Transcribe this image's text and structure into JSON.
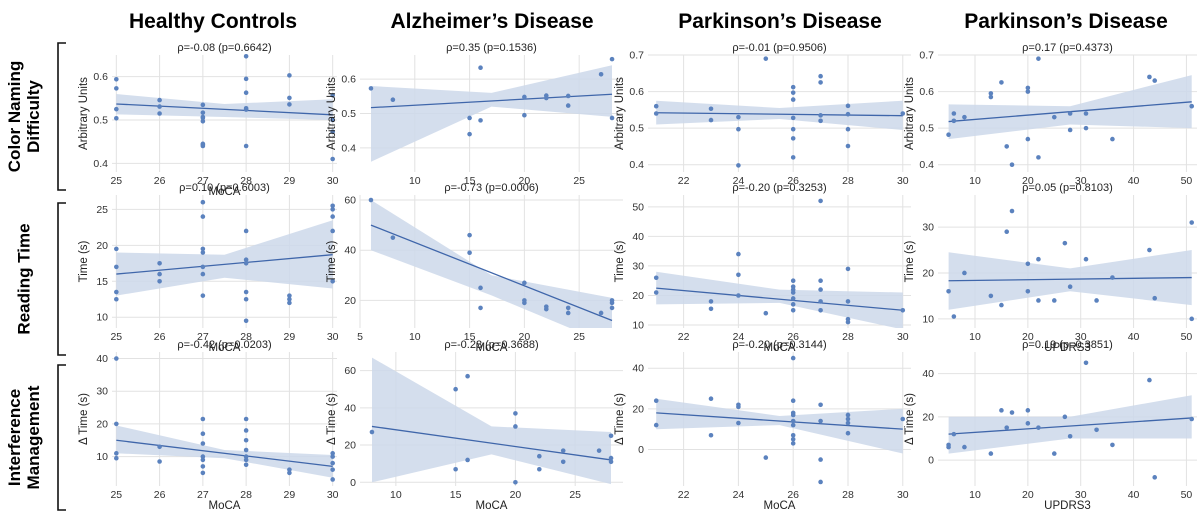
{
  "column_titles": [
    "Healthy Controls",
    "Alzheimer’s Disease",
    "Parkinson’s Disease",
    "Parkinson’s Disease"
  ],
  "row_titles": [
    [
      "Color Naming",
      "Difficulty"
    ],
    [
      "Reading Time"
    ],
    [
      "Interference",
      "Management"
    ]
  ],
  "colors": {
    "point": "#5b82be",
    "line": "#3f66aa",
    "band": "#ccd8ea",
    "grid": "#e2e2e2"
  },
  "chart_data": [
    {
      "type": "scatter",
      "title": "ρ=-0.08 (p=0.6642)",
      "xlabel": "MoCA",
      "ylabel": "Arbitrary Units",
      "xlim": [
        24.9,
        30.1
      ],
      "ylim": [
        0.38,
        0.65
      ],
      "xticks": [
        25,
        26,
        27,
        28,
        29,
        30
      ],
      "yticks": [
        0.4,
        0.5,
        0.6
      ],
      "x": [
        25,
        25,
        25,
        25,
        26,
        26,
        26,
        27,
        27,
        27,
        27,
        27,
        27,
        27,
        27,
        28,
        28,
        28,
        28,
        28,
        28,
        29,
        29,
        29,
        30,
        30,
        30,
        30
      ],
      "y": [
        0.594,
        0.573,
        0.525,
        0.504,
        0.546,
        0.531,
        0.515,
        0.535,
        0.517,
        0.505,
        0.497,
        0.507,
        0.445,
        0.443,
        0.44,
        0.647,
        0.595,
        0.563,
        0.527,
        0.524,
        0.44,
        0.603,
        0.551,
        0.536,
        0.557,
        0.5,
        0.473,
        0.41
      ],
      "fit": [
        [
          25,
          0.537
        ],
        [
          30,
          0.512
        ]
      ],
      "band_lo": [
        0.513,
        0.507,
        0.5
      ],
      "band_hi": [
        0.56,
        0.537,
        0.548
      ]
    },
    {
      "type": "scatter",
      "title": "ρ=0.35 (p=0.1536)",
      "xlabel": "",
      "ylabel": "Arbitrary Units",
      "xlim": [
        5,
        29
      ],
      "ylim": [
        0.33,
        0.67
      ],
      "xticks": [
        10,
        15,
        20,
        25
      ],
      "yticks": [
        0.4,
        0.5,
        0.6
      ],
      "x": [
        6,
        8,
        15,
        15,
        16,
        16,
        20,
        20,
        22,
        22,
        24,
        24,
        27,
        28,
        28
      ],
      "y": [
        0.573,
        0.54,
        0.487,
        0.44,
        0.633,
        0.48,
        0.548,
        0.495,
        0.552,
        0.545,
        0.551,
        0.523,
        0.614,
        0.658,
        0.487
      ],
      "fit": [
        [
          6,
          0.517
        ],
        [
          28,
          0.556
        ]
      ],
      "band_lo": [
        0.36,
        0.52,
        0.49
      ],
      "band_hi": [
        0.58,
        0.56,
        0.64
      ]
    },
    {
      "type": "scatter",
      "title": "ρ=-0.01 (p=0.9506)",
      "xlabel": "",
      "ylabel": "Arbitrary Units",
      "xlim": [
        20.7,
        30.3
      ],
      "ylim": [
        0.38,
        0.7
      ],
      "xticks": [
        22,
        24,
        26,
        28,
        30
      ],
      "yticks": [
        0.4,
        0.5,
        0.6,
        0.7
      ],
      "x": [
        21,
        21,
        23,
        23,
        24,
        24,
        24,
        25,
        26,
        26,
        26,
        26,
        26,
        26,
        26,
        27,
        27,
        27,
        27,
        28,
        28,
        28,
        28,
        30
      ],
      "y": [
        0.56,
        0.54,
        0.553,
        0.522,
        0.53,
        0.497,
        0.398,
        0.69,
        0.612,
        0.597,
        0.578,
        0.528,
        0.497,
        0.472,
        0.42,
        0.642,
        0.625,
        0.535,
        0.52,
        0.561,
        0.538,
        0.497,
        0.451,
        0.54
      ],
      "fit": [
        [
          21,
          0.542
        ],
        [
          30,
          0.534
        ]
      ],
      "band_lo": [
        0.51,
        0.525,
        0.495
      ],
      "band_hi": [
        0.575,
        0.555,
        0.575
      ]
    },
    {
      "type": "scatter",
      "title": "ρ=0.17 (p=0.4373)",
      "xlabel": "",
      "ylabel": "Arbitrary Units",
      "xlim": [
        3,
        52
      ],
      "ylim": [
        0.38,
        0.7
      ],
      "xticks": [
        10,
        20,
        30,
        40,
        50
      ],
      "yticks": [
        0.4,
        0.5,
        0.6,
        0.7
      ],
      "x": [
        5,
        6,
        6,
        8,
        13,
        13,
        15,
        16,
        17,
        20,
        20,
        20,
        22,
        22,
        25,
        28,
        28,
        31,
        31,
        36,
        43,
        44,
        51
      ],
      "y": [
        0.482,
        0.54,
        0.52,
        0.53,
        0.595,
        0.585,
        0.625,
        0.45,
        0.4,
        0.61,
        0.6,
        0.47,
        0.69,
        0.42,
        0.53,
        0.495,
        0.54,
        0.54,
        0.5,
        0.47,
        0.64,
        0.63,
        0.56
      ],
      "fit": [
        [
          5,
          0.518
        ],
        [
          51,
          0.572
        ]
      ],
      "band_lo": [
        0.47,
        0.51,
        0.5
      ],
      "band_hi": [
        0.565,
        0.56,
        0.645
      ]
    },
    {
      "type": "scatter",
      "title": "ρ=0.10 (p=0.6003)",
      "xlabel": "MoCA",
      "ylabel": "Time (s)",
      "xlim": [
        24.9,
        30.1
      ],
      "ylim": [
        8.5,
        27
      ],
      "xticks": [
        25,
        26,
        27,
        28,
        29,
        30
      ],
      "yticks": [
        10,
        15,
        20,
        25
      ],
      "x": [
        25,
        25,
        25,
        25,
        26,
        26,
        26,
        27,
        27,
        27,
        27,
        27,
        27,
        27,
        28,
        28,
        28,
        28,
        28,
        28,
        29,
        29,
        29,
        30,
        30,
        30,
        30,
        30
      ],
      "y": [
        19.5,
        17,
        13.5,
        12.5,
        17.5,
        16,
        15,
        26,
        24,
        19.5,
        19,
        17,
        16,
        13,
        22,
        18,
        17.5,
        13.5,
        12.5,
        9.5,
        13,
        12.5,
        12,
        25.5,
        25,
        24,
        22,
        15
      ],
      "fit": [
        [
          25,
          16
        ],
        [
          30,
          18.7
        ]
      ],
      "band_lo": [
        13,
        15.5,
        14
      ],
      "band_hi": [
        19,
        18.7,
        23.5
      ]
    },
    {
      "type": "scatter",
      "title": "ρ=-0.73 (p=0.0006)",
      "xlabel": "MoCA",
      "ylabel": "Time (s)",
      "xlim": [
        5,
        29
      ],
      "ylim": [
        9,
        62
      ],
      "xticks": [
        5,
        10,
        15,
        20,
        25
      ],
      "yticks": [
        20,
        40,
        60
      ],
      "x": [
        6,
        8,
        15,
        15,
        16,
        16,
        20,
        20,
        20,
        22,
        22,
        24,
        24,
        27,
        28,
        28,
        28
      ],
      "y": [
        60,
        45,
        46,
        39,
        25,
        17,
        27,
        20,
        19,
        17.5,
        16.5,
        17,
        15,
        15,
        20,
        19,
        17
      ],
      "fit": [
        [
          6,
          50
        ],
        [
          28,
          12
        ]
      ],
      "band_lo": [
        40,
        22,
        2
      ],
      "band_hi": [
        60,
        30,
        21
      ]
    },
    {
      "type": "scatter",
      "title": "ρ=-0.20 (p=0.3253)",
      "xlabel": "MoCA",
      "ylabel": "Time (s)",
      "xlim": [
        20.7,
        30.3
      ],
      "ylim": [
        9,
        54
      ],
      "xticks": [
        22,
        24,
        26,
        28,
        30
      ],
      "yticks": [
        10,
        20,
        30,
        40,
        50
      ],
      "x": [
        21,
        21,
        23,
        23,
        24,
        24,
        24,
        25,
        26,
        26,
        26,
        26,
        26,
        26,
        26,
        27,
        27,
        27,
        27,
        27,
        28,
        28,
        28,
        28,
        30
      ],
      "y": [
        26,
        21,
        18,
        15.5,
        34,
        27,
        20,
        14,
        25,
        23,
        22,
        21,
        19,
        17,
        15,
        52,
        25,
        22,
        18,
        15,
        29,
        18,
        12,
        11,
        15
      ],
      "fit": [
        [
          21,
          22.5
        ],
        [
          30,
          15
        ]
      ],
      "band_lo": [
        17,
        17.5,
        8.5
      ],
      "band_hi": [
        28,
        22,
        21
      ]
    },
    {
      "type": "scatter",
      "title": "ρ=0.05 (p=0.8103)",
      "xlabel": "UPDRS3",
      "ylabel": "Time (s)",
      "xlim": [
        3,
        52
      ],
      "ylim": [
        8,
        37
      ],
      "xticks": [
        10,
        20,
        30,
        40,
        50
      ],
      "yticks": [
        10,
        20,
        30
      ],
      "x": [
        5,
        6,
        8,
        13,
        15,
        16,
        17,
        20,
        20,
        22,
        22,
        25,
        27,
        28,
        31,
        33,
        36,
        43,
        44,
        51,
        51
      ],
      "y": [
        16,
        10.5,
        20,
        15,
        13,
        29,
        33.5,
        22,
        16,
        14,
        23,
        14,
        26.5,
        17,
        23,
        14,
        19,
        25,
        14.5,
        31,
        10
      ],
      "fit": [
        [
          5,
          18.3
        ],
        [
          51,
          19
        ]
      ],
      "band_lo": [
        12,
        16,
        13
      ],
      "band_hi": [
        24.5,
        21,
        25
      ]
    },
    {
      "type": "scatter",
      "title": "ρ=-0.42 (p=0.0203)",
      "xlabel": "MoCA",
      "ylabel": "Δ Time (s)",
      "xlim": [
        24.9,
        30.1
      ],
      "ylim": [
        1,
        42
      ],
      "xticks": [
        25,
        26,
        27,
        28,
        29,
        30
      ],
      "yticks": [
        10,
        20,
        30,
        40
      ],
      "x": [
        25,
        25,
        25,
        25,
        26,
        26,
        27,
        27,
        27,
        27,
        27,
        27,
        27,
        28,
        28,
        28,
        28,
        28,
        28,
        28,
        29,
        29,
        30,
        30,
        30,
        30,
        30
      ],
      "y": [
        40,
        20,
        11,
        9.5,
        13,
        8.5,
        21.5,
        17,
        14,
        10,
        9,
        7,
        5,
        21.5,
        18,
        15,
        12,
        10,
        9,
        7.5,
        6,
        5,
        11,
        10,
        8,
        6,
        3
      ],
      "fit": [
        [
          25,
          15
        ],
        [
          30,
          7
        ]
      ],
      "band_lo": [
        11,
        9.5,
        3.5
      ],
      "band_hi": [
        19.5,
        12,
        10.5
      ]
    },
    {
      "type": "scatter",
      "title": "ρ=-0.23 (p=0.3688)",
      "xlabel": "MoCA",
      "ylabel": "Δ Time (s)",
      "xlim": [
        7,
        29
      ],
      "ylim": [
        -2,
        70
      ],
      "xticks": [
        10,
        15,
        20,
        25
      ],
      "yticks": [
        0,
        20,
        40,
        60
      ],
      "x": [
        8,
        15,
        15,
        16,
        16,
        20,
        20,
        20,
        22,
        22,
        24,
        24,
        27,
        28,
        28,
        28
      ],
      "y": [
        27,
        50,
        7,
        57,
        12,
        37,
        30,
        0,
        14,
        7,
        17,
        11,
        17,
        25,
        13,
        11
      ],
      "fit": [
        [
          8,
          30
        ],
        [
          28,
          12
        ]
      ],
      "band_lo": [
        0,
        15,
        -1
      ],
      "band_hi": [
        67,
        30,
        27
      ]
    },
    {
      "type": "scatter",
      "title": "ρ=-0.20 (p=0.3144)",
      "xlabel": "MoCA",
      "ylabel": "Δ Time (s)",
      "xlim": [
        20.7,
        30.3
      ],
      "ylim": [
        -18,
        48
      ],
      "xticks": [
        22,
        24,
        26,
        28,
        30
      ],
      "yticks": [
        0,
        20,
        40
      ],
      "x": [
        21,
        21,
        23,
        23,
        24,
        24,
        24,
        25,
        26,
        26,
        26,
        26,
        26,
        26,
        26,
        26,
        26,
        27,
        27,
        27,
        27,
        28,
        28,
        28,
        28,
        30
      ],
      "y": [
        24,
        12,
        25,
        7,
        22,
        21,
        13,
        -4,
        45,
        24,
        18,
        17,
        14,
        12,
        7,
        5,
        3,
        22,
        14,
        -5,
        -16,
        17,
        15,
        13,
        8,
        15
      ],
      "fit": [
        [
          21,
          18
        ],
        [
          30,
          10
        ]
      ],
      "band_lo": [
        10,
        12,
        -2
      ],
      "band_hi": [
        25,
        16.5,
        20
      ]
    },
    {
      "type": "scatter",
      "title": "ρ=0.19 (p=0.3851)",
      "xlabel": "UPDRS3",
      "ylabel": "Δ Time (s)",
      "xlim": [
        3,
        52
      ],
      "ylim": [
        -12,
        50
      ],
      "xticks": [
        10,
        20,
        30,
        40,
        50
      ],
      "yticks": [
        0,
        20,
        40
      ],
      "x": [
        5,
        5,
        6,
        8,
        13,
        15,
        16,
        17,
        20,
        20,
        22,
        25,
        27,
        28,
        31,
        33,
        36,
        43,
        44,
        51
      ],
      "y": [
        7,
        6,
        12,
        6,
        3,
        23,
        15,
        22,
        17,
        23,
        15,
        3,
        20,
        11,
        45,
        14,
        7,
        37,
        -8,
        19
      ],
      "fit": [
        [
          5,
          12
        ],
        [
          51,
          19.5
        ]
      ],
      "band_lo": [
        3,
        10,
        10
      ],
      "band_hi": [
        20,
        20,
        30
      ]
    }
  ]
}
